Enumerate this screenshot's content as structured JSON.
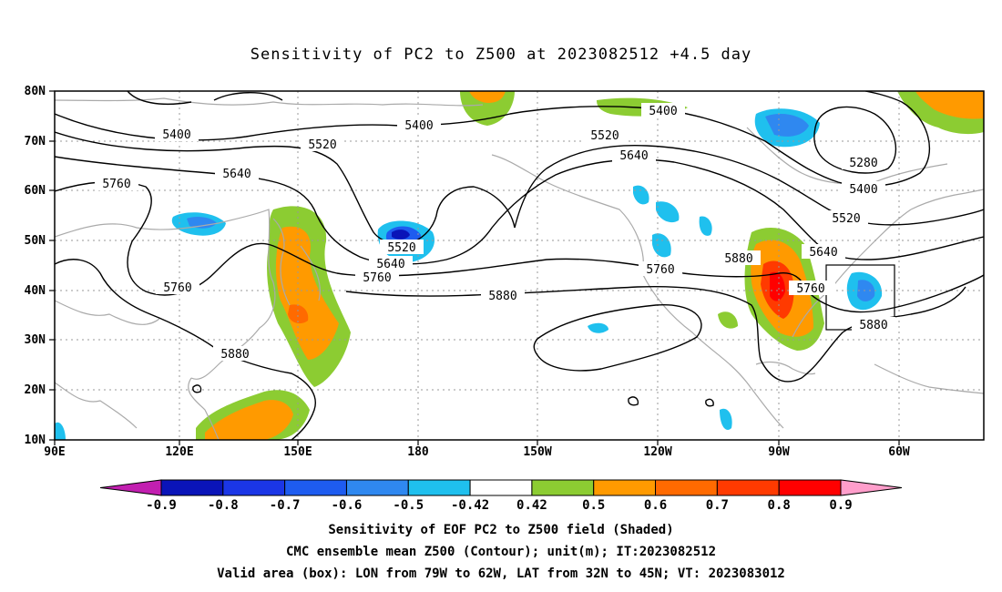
{
  "title": "Sensitivity of PC2 to Z500 at 2023082512 +4.5 day",
  "map": {
    "lon_labels": [
      "90E",
      "120E",
      "150E",
      "180",
      "150W",
      "120W",
      "90W",
      "60W"
    ],
    "lat_labels": [
      "80N",
      "70N",
      "60N",
      "50N",
      "40N",
      "30N",
      "20N",
      "10N"
    ],
    "contour_labels": [
      "5400",
      "5400",
      "5520",
      "5520",
      "5640",
      "5640",
      "5760",
      "5760",
      "5520",
      "5640",
      "5760",
      "5760",
      "5880",
      "5760",
      "5880",
      "5880",
      "5400",
      "5280",
      "5400",
      "5520",
      "5640",
      "5760",
      "5880"
    ],
    "valid_box": {
      "lon_from": "79W",
      "lon_to": "62W",
      "lat_from": "32N",
      "lat_to": "45N"
    },
    "colors": {
      "land_outline": "#aaaaaa",
      "contour": "#000000",
      "grid": "#999999"
    }
  },
  "colorbar": {
    "labels": [
      "-0.9",
      "-0.8",
      "-0.7",
      "-0.6",
      "-0.5",
      "-0.42",
      "0.42",
      "0.5",
      "0.6",
      "0.7",
      "0.8",
      "0.9"
    ],
    "colors": [
      "#c21fb0",
      "#0a14b8",
      "#1b36e6",
      "#1e5cf0",
      "#2f88f0",
      "#1fc0ee",
      "#ffffff",
      "#8ccc32",
      "#ff9a00",
      "#ff6a00",
      "#ff3a00",
      "#ff0000",
      "#ff9ecb"
    ]
  },
  "captions": {
    "line1": "Sensitivity of EOF PC2 to Z500 field (Shaded)",
    "line2": "CMC ensemble mean Z500 (Contour); unit(m); IT:2023082512",
    "line3": "Valid area (box): LON from 79W to 62W, LAT from 32N to 45N; VT: 2023083012"
  }
}
